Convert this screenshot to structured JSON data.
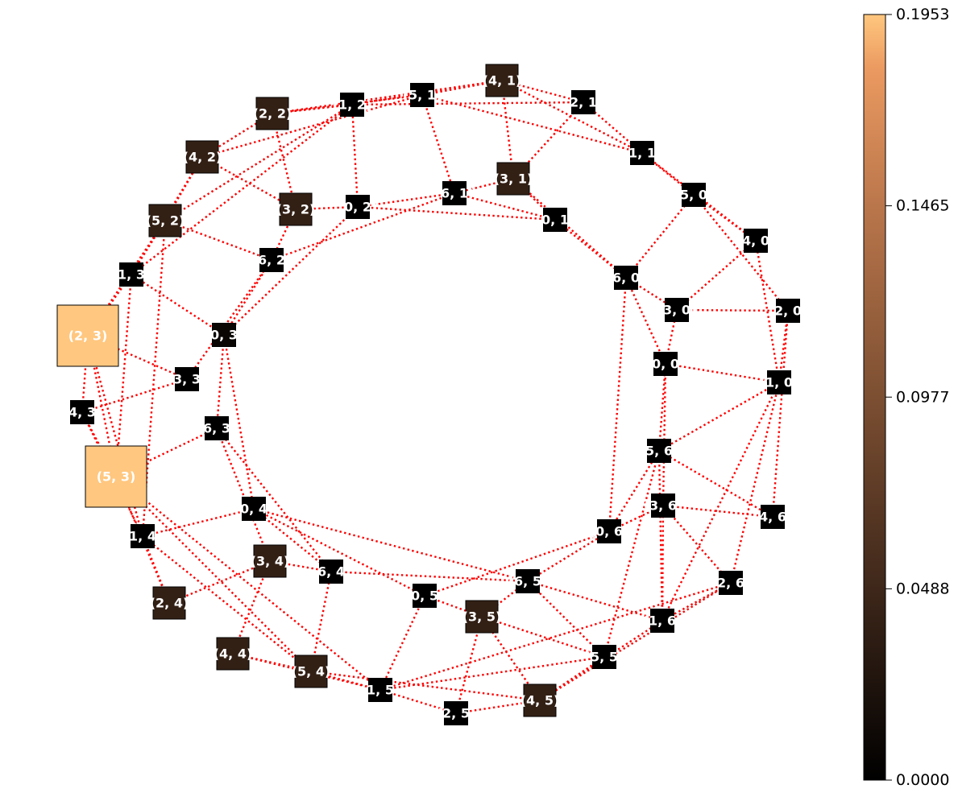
{
  "chart_data": {
    "type": "graph",
    "title": "",
    "edge_style": {
      "color": "#ff0000",
      "line": "dotted"
    },
    "colormap": "copper",
    "colorbar": {
      "min": 0.0,
      "max": 0.1953,
      "ticks": [
        "0.0000",
        "0.0488",
        "0.0977",
        "0.1465",
        "0.1953"
      ],
      "tick_values": [
        0.0,
        0.0488,
        0.0977,
        0.1465,
        0.1953
      ]
    },
    "nodes": [
      {
        "id": "0,0",
        "label": "(0, 0)",
        "value": 0.0
      },
      {
        "id": "1,0",
        "label": "(1, 0)",
        "value": 0.0
      },
      {
        "id": "2,0",
        "label": "(2, 0)",
        "value": 0.0
      },
      {
        "id": "3,0",
        "label": "(3, 0)",
        "value": 0.0
      },
      {
        "id": "4,0",
        "label": "(4, 0)",
        "value": 0.0
      },
      {
        "id": "5,0",
        "label": "(5, 0)",
        "value": 0.0
      },
      {
        "id": "6,0",
        "label": "(6, 0)",
        "value": 0.0
      },
      {
        "id": "0,1",
        "label": "(0, 1)",
        "value": 0.0
      },
      {
        "id": "1,1",
        "label": "(1, 1)",
        "value": 0.0
      },
      {
        "id": "2,1",
        "label": "(2, 1)",
        "value": 0.0
      },
      {
        "id": "3,1",
        "label": "(3, 1)",
        "value": 0.04
      },
      {
        "id": "4,1",
        "label": "(4, 1)",
        "value": 0.04
      },
      {
        "id": "5,1",
        "label": "(5, 1)",
        "value": 0.0
      },
      {
        "id": "6,1",
        "label": "(6, 1)",
        "value": 0.0
      },
      {
        "id": "0,2",
        "label": "(0, 2)",
        "value": 0.0
      },
      {
        "id": "1,2",
        "label": "(1, 2)",
        "value": 0.0
      },
      {
        "id": "2,2",
        "label": "(2, 2)",
        "value": 0.04
      },
      {
        "id": "3,2",
        "label": "(3, 2)",
        "value": 0.04
      },
      {
        "id": "4,2",
        "label": "(4, 2)",
        "value": 0.04
      },
      {
        "id": "5,2",
        "label": "(5, 2)",
        "value": 0.04
      },
      {
        "id": "6,2",
        "label": "(6, 2)",
        "value": 0.0
      },
      {
        "id": "0,3",
        "label": "(0, 3)",
        "value": 0.008
      },
      {
        "id": "1,3",
        "label": "(1, 3)",
        "value": 0.0
      },
      {
        "id": "2,3",
        "label": "(2, 3)",
        "value": 0.1953
      },
      {
        "id": "3,3",
        "label": "(3, 3)",
        "value": 0.0
      },
      {
        "id": "4,3",
        "label": "(4, 3)",
        "value": 0.0
      },
      {
        "id": "5,3",
        "label": "(5, 3)",
        "value": 0.1953
      },
      {
        "id": "6,3",
        "label": "(6, 3)",
        "value": 0.0
      },
      {
        "id": "0,4",
        "label": "(0, 4)",
        "value": 0.0
      },
      {
        "id": "1,4",
        "label": "(1, 4)",
        "value": 0.0
      },
      {
        "id": "2,4",
        "label": "(2, 4)",
        "value": 0.04
      },
      {
        "id": "3,4",
        "label": "(3, 4)",
        "value": 0.04
      },
      {
        "id": "4,4",
        "label": "(4, 4)",
        "value": 0.04
      },
      {
        "id": "5,4",
        "label": "(5, 4)",
        "value": 0.04
      },
      {
        "id": "6,4",
        "label": "(6, 4)",
        "value": 0.0
      },
      {
        "id": "0,5",
        "label": "(0, 5)",
        "value": 0.0
      },
      {
        "id": "1,5",
        "label": "(1, 5)",
        "value": 0.0
      },
      {
        "id": "2,5",
        "label": "(2, 5)",
        "value": 0.0
      },
      {
        "id": "3,5",
        "label": "(3, 5)",
        "value": 0.04
      },
      {
        "id": "4,5",
        "label": "(4, 5)",
        "value": 0.04
      },
      {
        "id": "5,5",
        "label": "(5, 5)",
        "value": 0.0
      },
      {
        "id": "6,5",
        "label": "(6, 5)",
        "value": 0.0
      },
      {
        "id": "0,6",
        "label": "(0, 6)",
        "value": 0.0
      },
      {
        "id": "1,6",
        "label": "(1, 6)",
        "value": 0.0
      },
      {
        "id": "2,6",
        "label": "(2, 6)",
        "value": 0.0
      },
      {
        "id": "3,6",
        "label": "(3, 6)",
        "value": 0.0
      },
      {
        "id": "4,6",
        "label": "(4, 6)",
        "value": 0.0
      },
      {
        "id": "5,6",
        "label": "(5, 6)",
        "value": 0.0
      }
    ],
    "edges": [
      [
        "2,3",
        "5,3"
      ],
      [
        "2,3",
        "4,3"
      ],
      [
        "2,3",
        "1,3"
      ],
      [
        "2,3",
        "3,3"
      ],
      [
        "2,3",
        "5,2"
      ],
      [
        "2,3",
        "1,4"
      ],
      [
        "5,3",
        "4,3"
      ],
      [
        "5,3",
        "6,3"
      ],
      [
        "5,3",
        "1,3"
      ],
      [
        "5,3",
        "2,4"
      ],
      [
        "5,3",
        "5,4"
      ],
      [
        "5,3",
        "1,5"
      ],
      [
        "4,3",
        "3,3"
      ],
      [
        "4,3",
        "1,4"
      ],
      [
        "1,3",
        "0,3"
      ],
      [
        "1,3",
        "5,2"
      ],
      [
        "1,3",
        "1,2"
      ],
      [
        "3,3",
        "6,2"
      ],
      [
        "0,3",
        "6,3"
      ],
      [
        "0,3",
        "6,2"
      ],
      [
        "0,3",
        "0,4"
      ],
      [
        "6,3",
        "6,4"
      ],
      [
        "6,3",
        "3,4"
      ],
      [
        "1,4",
        "0,4"
      ],
      [
        "1,4",
        "2,4"
      ],
      [
        "1,4",
        "5,4"
      ],
      [
        "0,4",
        "6,4"
      ],
      [
        "0,4",
        "6,5"
      ],
      [
        "0,4",
        "0,5"
      ],
      [
        "2,4",
        "3,4"
      ],
      [
        "3,4",
        "4,4"
      ],
      [
        "3,4",
        "6,4"
      ],
      [
        "4,4",
        "5,4"
      ],
      [
        "4,4",
        "1,5"
      ],
      [
        "5,4",
        "6,4"
      ],
      [
        "5,4",
        "1,5"
      ],
      [
        "5,4",
        "4,5"
      ],
      [
        "6,4",
        "6,5"
      ],
      [
        "0,5",
        "1,5"
      ],
      [
        "0,5",
        "3,5"
      ],
      [
        "0,5",
        "0,6"
      ],
      [
        "1,5",
        "2,5"
      ],
      [
        "1,5",
        "5,5"
      ],
      [
        "1,5",
        "2,6"
      ],
      [
        "2,5",
        "3,5"
      ],
      [
        "2,5",
        "4,5"
      ],
      [
        "3,5",
        "5,5"
      ],
      [
        "3,5",
        "4,5"
      ],
      [
        "3,5",
        "6,5"
      ],
      [
        "4,5",
        "5,5"
      ],
      [
        "4,5",
        "1,6"
      ],
      [
        "4,5",
        "2,6"
      ],
      [
        "5,5",
        "6,5"
      ],
      [
        "5,5",
        "5,6"
      ],
      [
        "6,5",
        "0,6"
      ],
      [
        "6,5",
        "1,6"
      ],
      [
        "0,6",
        "3,6"
      ],
      [
        "0,6",
        "5,6"
      ],
      [
        "0,6",
        "6,0"
      ],
      [
        "1,6",
        "2,6"
      ],
      [
        "1,6",
        "3,6"
      ],
      [
        "1,6",
        "5,6"
      ],
      [
        "1,6",
        "1,0"
      ],
      [
        "2,6",
        "3,6"
      ],
      [
        "2,6",
        "1,0"
      ],
      [
        "3,6",
        "4,6"
      ],
      [
        "3,6",
        "0,0"
      ],
      [
        "4,6",
        "5,6"
      ],
      [
        "4,6",
        "2,0"
      ],
      [
        "5,6",
        "0,0"
      ],
      [
        "5,6",
        "1,0"
      ],
      [
        "0,0",
        "3,0"
      ],
      [
        "0,0",
        "6,0"
      ],
      [
        "0,0",
        "1,0"
      ],
      [
        "1,0",
        "2,0"
      ],
      [
        "1,0",
        "4,0"
      ],
      [
        "2,0",
        "3,0"
      ],
      [
        "2,0",
        "5,0"
      ],
      [
        "3,0",
        "4,0"
      ],
      [
        "3,0",
        "6,0"
      ],
      [
        "4,0",
        "5,0"
      ],
      [
        "4,0",
        "1,1"
      ],
      [
        "5,0",
        "6,0"
      ],
      [
        "5,0",
        "1,1"
      ],
      [
        "6,0",
        "0,1"
      ],
      [
        "6,0",
        "3,1"
      ],
      [
        "0,1",
        "3,1"
      ],
      [
        "0,1",
        "6,1"
      ],
      [
        "0,1",
        "0,2"
      ],
      [
        "1,1",
        "2,1"
      ],
      [
        "1,1",
        "4,1"
      ],
      [
        "1,1",
        "5,1"
      ],
      [
        "2,1",
        "4,1"
      ],
      [
        "2,1",
        "3,1"
      ],
      [
        "2,1",
        "1,2"
      ],
      [
        "3,1",
        "4,1"
      ],
      [
        "3,1",
        "6,1"
      ],
      [
        "4,1",
        "5,1"
      ],
      [
        "4,1",
        "1,2"
      ],
      [
        "4,1",
        "2,2"
      ],
      [
        "5,1",
        "6,1"
      ],
      [
        "5,1",
        "2,2"
      ],
      [
        "5,1",
        "4,2"
      ],
      [
        "6,1",
        "0,2"
      ],
      [
        "6,1",
        "6,2"
      ],
      [
        "0,2",
        "1,2"
      ],
      [
        "0,2",
        "3,2"
      ],
      [
        "0,2",
        "0,3"
      ],
      [
        "1,2",
        "2,2"
      ],
      [
        "1,2",
        "5,2"
      ],
      [
        "2,2",
        "3,2"
      ],
      [
        "2,2",
        "4,2"
      ],
      [
        "3,2",
        "4,2"
      ],
      [
        "3,2",
        "6,2"
      ],
      [
        "4,2",
        "5,2"
      ],
      [
        "4,2",
        "1,3"
      ],
      [
        "5,2",
        "6,2"
      ],
      [
        "5,2",
        "1,4"
      ]
    ]
  }
}
